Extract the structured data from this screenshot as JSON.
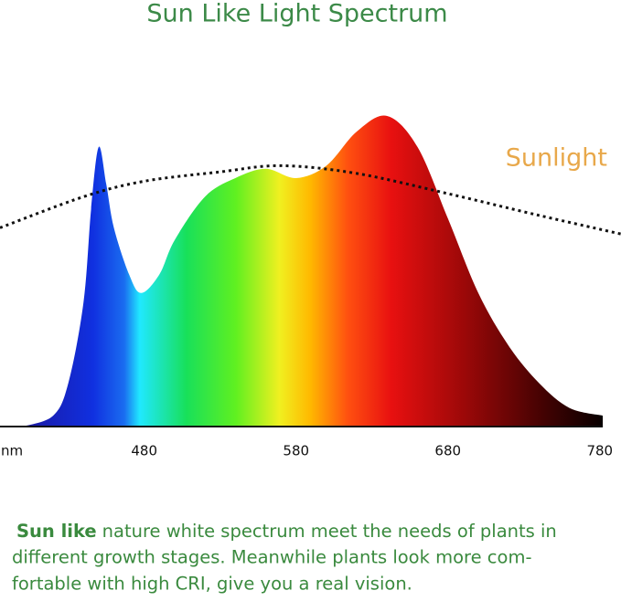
{
  "chart_data": {
    "type": "spectrum",
    "title": "Sun Like Light Spectrum",
    "x_label": "nm",
    "xlim": [
      385,
      794
    ],
    "ylim": [
      0,
      100
    ],
    "xticks": [
      480,
      580,
      680,
      780
    ],
    "spectrum": {
      "x": [
        400,
        420,
        430,
        440,
        445,
        450,
        455,
        460,
        470,
        478,
        490,
        500,
        520,
        540,
        560,
        580,
        600,
        620,
        640,
        660,
        680,
        700,
        720,
        740,
        760,
        782
      ],
      "values": [
        0,
        3.5,
        14,
        40,
        70,
        90,
        78,
        64,
        49,
        43,
        49,
        60,
        74,
        80,
        83,
        80,
        84,
        95,
        100,
        90,
        67,
        43,
        26,
        14,
        6,
        3.5
      ]
    },
    "sunlight": {
      "name": "Sunlight",
      "color": "#e8a84a",
      "x": [
        385,
        440,
        480,
        530,
        570,
        620,
        680,
        740,
        794
      ],
      "values": [
        64,
        74,
        79,
        82,
        84,
        81.5,
        75,
        68,
        62
      ]
    }
  },
  "caption": {
    "lead": "Sun like",
    "lines": [
      "nature white spectrum meet the needs of plants in",
      "different growth stages. Meanwhile plants look more com-",
      "fortable with high CRI, give you a real vision."
    ]
  }
}
